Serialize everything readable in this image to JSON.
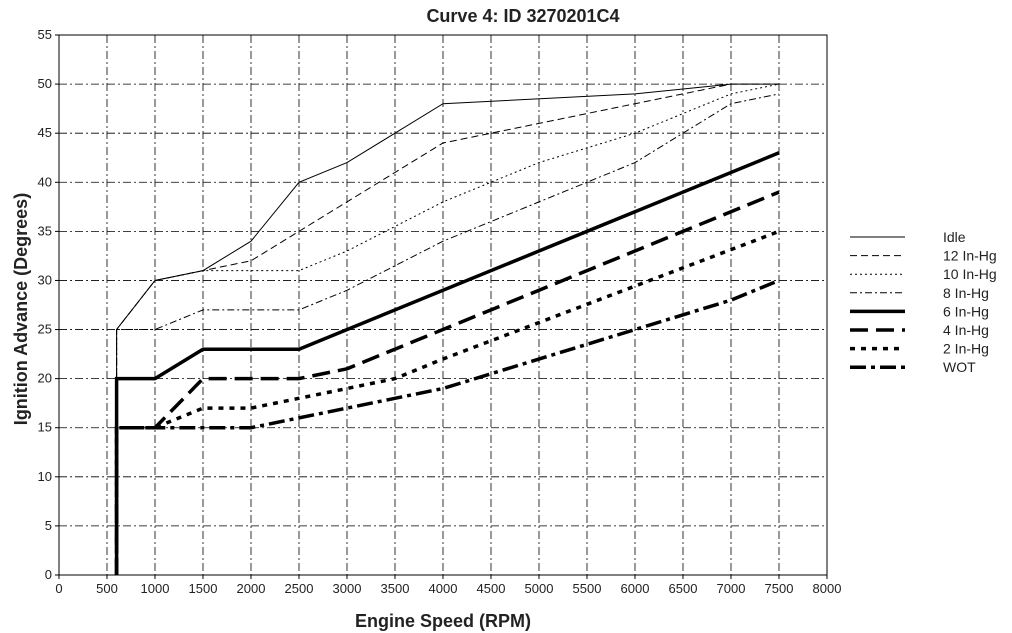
{
  "chart_data": {
    "type": "line",
    "title": "Curve 4: ID 3270201C4",
    "xlabel": "Engine Speed (RPM)",
    "ylabel": "Ignition Advance (Degrees)",
    "xlim": [
      0,
      8000
    ],
    "ylim": [
      0,
      55
    ],
    "x_ticks": [
      0,
      500,
      1000,
      1500,
      2000,
      2500,
      3000,
      3500,
      4000,
      4500,
      5000,
      5500,
      6000,
      6500,
      7000,
      7500,
      8000
    ],
    "y_ticks": [
      0,
      5,
      10,
      15,
      20,
      25,
      30,
      35,
      40,
      45,
      50,
      55
    ],
    "grid": true,
    "legend_position": "right",
    "series": [
      {
        "name": "Idle",
        "style": "thin-solid",
        "x": [
          600,
          600,
          1000,
          1500,
          2000,
          2500,
          3000,
          4000,
          6000,
          7000,
          7500
        ],
        "y": [
          0,
          25,
          30,
          31,
          34,
          40,
          42,
          48,
          49,
          50,
          50
        ]
      },
      {
        "name": "12 In-Hg",
        "style": "thin-dash",
        "x": [
          600,
          600,
          1000,
          1500,
          2000,
          3000,
          4000,
          5000,
          6000,
          7000,
          7500
        ],
        "y": [
          0,
          25,
          30,
          31,
          32,
          38,
          44,
          46,
          48,
          50,
          50
        ]
      },
      {
        "name": "10 In-Hg",
        "style": "thin-dot",
        "x": [
          600,
          600,
          1000,
          1500,
          2500,
          3000,
          4000,
          5000,
          6000,
          7000,
          7500
        ],
        "y": [
          0,
          25,
          30,
          31,
          31,
          33,
          38,
          42,
          45,
          49,
          50
        ]
      },
      {
        "name": "8 In-Hg",
        "style": "thin-dashdot",
        "x": [
          600,
          600,
          1000,
          1500,
          2500,
          3000,
          4000,
          5000,
          6000,
          7000,
          7500
        ],
        "y": [
          0,
          25,
          25,
          27,
          27,
          29,
          34,
          38,
          42,
          48,
          49
        ]
      },
      {
        "name": "6 In-Hg",
        "style": "thick-solid",
        "x": [
          600,
          600,
          1000,
          1500,
          2500,
          7500
        ],
        "y": [
          0,
          20,
          20,
          23,
          23,
          43
        ]
      },
      {
        "name": "4 In-Hg",
        "style": "thick-dash",
        "x": [
          600,
          600,
          1000,
          1500,
          2500,
          3000,
          4000,
          7500
        ],
        "y": [
          0,
          15,
          15,
          20,
          20,
          21,
          25,
          39
        ]
      },
      {
        "name": "2 In-Hg",
        "style": "thick-dot",
        "x": [
          600,
          600,
          1000,
          1500,
          2000,
          3000,
          3500,
          4000,
          7500
        ],
        "y": [
          0,
          15,
          15,
          17,
          17,
          19,
          20,
          22,
          35
        ]
      },
      {
        "name": "WOT",
        "style": "thick-dashdot",
        "x": [
          600,
          600,
          1500,
          2000,
          2500,
          3000,
          4000,
          7000,
          7500
        ],
        "y": [
          0,
          15,
          15,
          15,
          16,
          17,
          19,
          28,
          30
        ]
      }
    ]
  }
}
